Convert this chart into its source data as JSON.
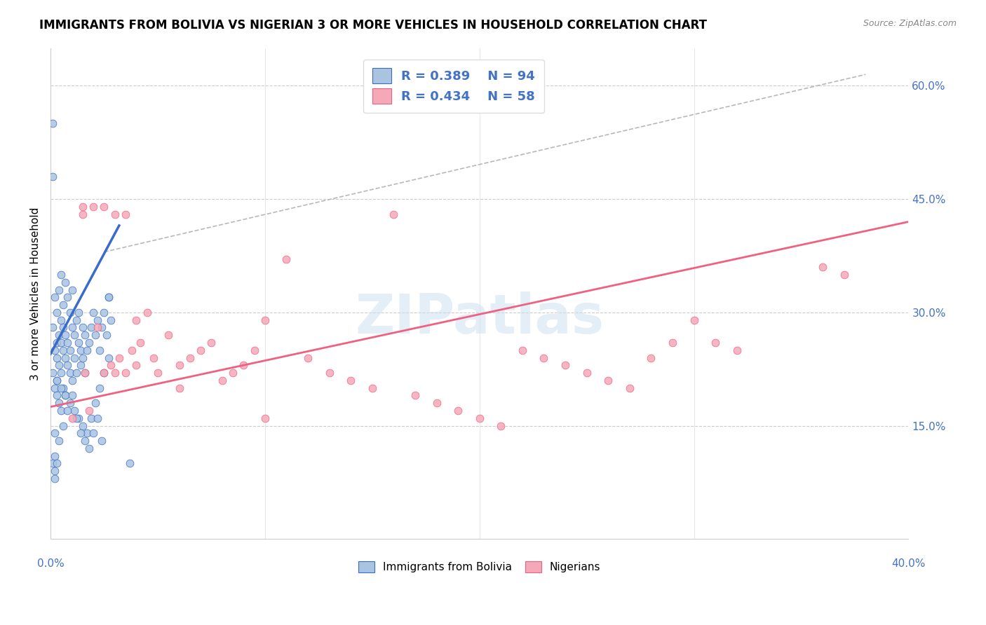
{
  "title": "IMMIGRANTS FROM BOLIVIA VS NIGERIAN 3 OR MORE VEHICLES IN HOUSEHOLD CORRELATION CHART",
  "source": "Source: ZipAtlas.com",
  "ylabel": "3 or more Vehicles in Household",
  "ytick_labels": [
    "15.0%",
    "30.0%",
    "45.0%",
    "60.0%"
  ],
  "ytick_values": [
    0.15,
    0.3,
    0.45,
    0.6
  ],
  "xtick_values": [
    0.0,
    0.1,
    0.2,
    0.3,
    0.4
  ],
  "xmin": 0.0,
  "xmax": 0.4,
  "ymin": 0.0,
  "ymax": 0.65,
  "watermark": "ZIPatlas",
  "legend_bolivia_r": "0.389",
  "legend_bolivia_n": "94",
  "legend_nigeria_r": "0.434",
  "legend_nigeria_n": "58",
  "color_bolivia_fill": "#a8c4e0",
  "color_bolivia_edge": "#3a6bc8",
  "color_nigeria_fill": "#f4a8b8",
  "color_nigeria_edge": "#f06080",
  "color_bolivia_line": "#3a6bc8",
  "color_nigeria_line": "#f06080",
  "color_dashed": "#b8b8b8",
  "bolivia_scatter_x": [
    0.001,
    0.001,
    0.002,
    0.002,
    0.002,
    0.003,
    0.003,
    0.003,
    0.003,
    0.003,
    0.004,
    0.004,
    0.004,
    0.004,
    0.005,
    0.005,
    0.005,
    0.005,
    0.005,
    0.006,
    0.006,
    0.006,
    0.006,
    0.007,
    0.007,
    0.007,
    0.007,
    0.008,
    0.008,
    0.008,
    0.009,
    0.009,
    0.009,
    0.01,
    0.01,
    0.01,
    0.011,
    0.011,
    0.012,
    0.012,
    0.013,
    0.013,
    0.014,
    0.014,
    0.015,
    0.015,
    0.016,
    0.016,
    0.017,
    0.018,
    0.019,
    0.02,
    0.021,
    0.022,
    0.023,
    0.024,
    0.025,
    0.026,
    0.027,
    0.028,
    0.003,
    0.005,
    0.007,
    0.009,
    0.011,
    0.013,
    0.015,
    0.017,
    0.019,
    0.021,
    0.023,
    0.025,
    0.027,
    0.002,
    0.004,
    0.006,
    0.008,
    0.01,
    0.012,
    0.014,
    0.016,
    0.018,
    0.02,
    0.022,
    0.024,
    0.001,
    0.001,
    0.001,
    0.002,
    0.002,
    0.002,
    0.003,
    0.037,
    0.027
  ],
  "bolivia_scatter_y": [
    0.22,
    0.28,
    0.25,
    0.32,
    0.2,
    0.26,
    0.3,
    0.19,
    0.24,
    0.21,
    0.27,
    0.33,
    0.23,
    0.18,
    0.29,
    0.35,
    0.22,
    0.17,
    0.26,
    0.31,
    0.25,
    0.2,
    0.28,
    0.34,
    0.24,
    0.19,
    0.27,
    0.32,
    0.23,
    0.26,
    0.3,
    0.22,
    0.25,
    0.28,
    0.33,
    0.21,
    0.27,
    0.24,
    0.29,
    0.22,
    0.26,
    0.3,
    0.25,
    0.23,
    0.28,
    0.24,
    0.27,
    0.22,
    0.25,
    0.26,
    0.28,
    0.3,
    0.27,
    0.29,
    0.25,
    0.28,
    0.3,
    0.27,
    0.32,
    0.29,
    0.21,
    0.2,
    0.19,
    0.18,
    0.17,
    0.16,
    0.15,
    0.14,
    0.16,
    0.18,
    0.2,
    0.22,
    0.24,
    0.14,
    0.13,
    0.15,
    0.17,
    0.19,
    0.16,
    0.14,
    0.13,
    0.12,
    0.14,
    0.16,
    0.13,
    0.55,
    0.48,
    0.1,
    0.09,
    0.11,
    0.08,
    0.1,
    0.1,
    0.32
  ],
  "nigeria_scatter_x": [
    0.01,
    0.015,
    0.015,
    0.016,
    0.018,
    0.02,
    0.022,
    0.025,
    0.025,
    0.028,
    0.03,
    0.03,
    0.032,
    0.035,
    0.035,
    0.038,
    0.04,
    0.04,
    0.042,
    0.045,
    0.048,
    0.05,
    0.055,
    0.06,
    0.06,
    0.065,
    0.07,
    0.075,
    0.08,
    0.085,
    0.09,
    0.095,
    0.1,
    0.1,
    0.11,
    0.12,
    0.13,
    0.14,
    0.15,
    0.16,
    0.17,
    0.18,
    0.19,
    0.2,
    0.21,
    0.22,
    0.23,
    0.24,
    0.25,
    0.26,
    0.27,
    0.28,
    0.29,
    0.3,
    0.31,
    0.32,
    0.36,
    0.37
  ],
  "nigeria_scatter_y": [
    0.16,
    0.43,
    0.44,
    0.22,
    0.17,
    0.44,
    0.28,
    0.44,
    0.22,
    0.23,
    0.43,
    0.22,
    0.24,
    0.43,
    0.22,
    0.25,
    0.29,
    0.23,
    0.26,
    0.3,
    0.24,
    0.22,
    0.27,
    0.23,
    0.2,
    0.24,
    0.25,
    0.26,
    0.21,
    0.22,
    0.23,
    0.25,
    0.29,
    0.16,
    0.37,
    0.24,
    0.22,
    0.21,
    0.2,
    0.43,
    0.19,
    0.18,
    0.17,
    0.16,
    0.15,
    0.25,
    0.24,
    0.23,
    0.22,
    0.21,
    0.2,
    0.24,
    0.26,
    0.29,
    0.26,
    0.25,
    0.36,
    0.35
  ],
  "bolivia_line_x": [
    0.0,
    0.032
  ],
  "bolivia_line_y": [
    0.245,
    0.415
  ],
  "nigeria_line_x": [
    0.0,
    0.4
  ],
  "nigeria_line_y": [
    0.175,
    0.42
  ],
  "dashed_line_x": [
    0.025,
    0.38
  ],
  "dashed_line_y": [
    0.38,
    0.615
  ]
}
